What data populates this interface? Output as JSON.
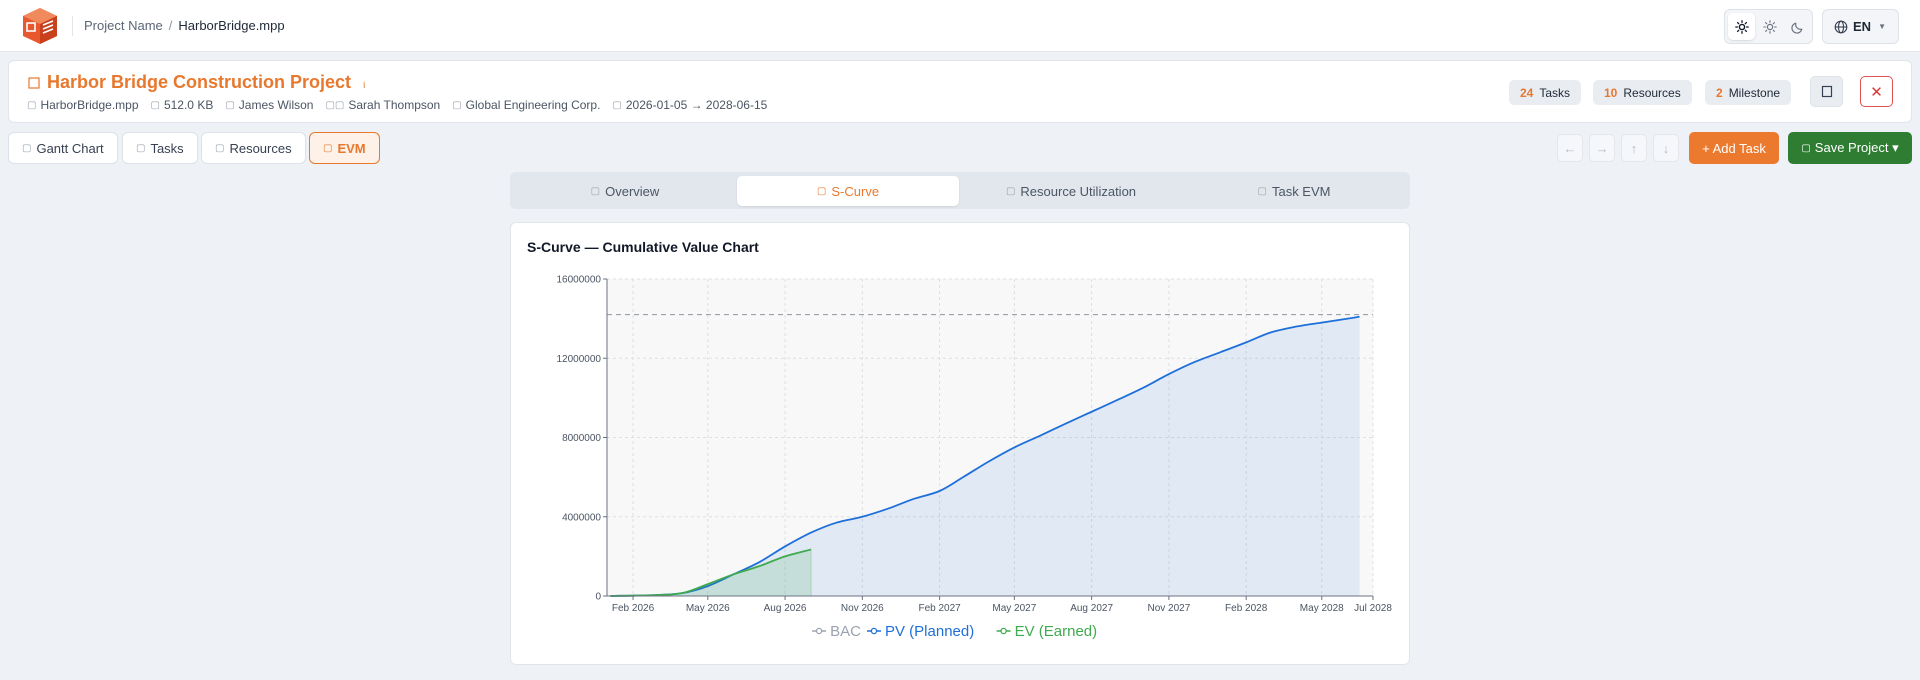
{
  "topbar": {
    "breadcrumb_project": "Project Name",
    "breadcrumb_sep": "/",
    "breadcrumb_file": "HarborBridge.mpp",
    "theme_icons": [
      "sun-auto-icon",
      "sun-icon",
      "moon-icon"
    ],
    "language": "EN"
  },
  "project": {
    "title": "Harbor Bridge Construction Project",
    "title_icon": "folder-icon",
    "info_marker": "i",
    "meta": {
      "file": "HarborBridge.mpp",
      "size": "512.0 KB",
      "manager": "James Wilson",
      "owner": "Sarah Thompson",
      "company": "Global Engineering Corp.",
      "dates": "2026-01-05 → 2028-06-15"
    },
    "stats": {
      "tasks_count": "24",
      "tasks_label": "Tasks",
      "resources_count": "10",
      "resources_label": "Resources",
      "milestone_count": "2",
      "milestone_label": "Milestone"
    },
    "close_glyph": "✕"
  },
  "tabs": {
    "gantt": "Gantt Chart",
    "tasks": "Tasks",
    "resources": "Resources",
    "evm": "EVM"
  },
  "actions": {
    "arrows": [
      "←",
      "→",
      "↑",
      "↓"
    ],
    "add_task": "+ Add Task",
    "save_project": "Save Project ▾"
  },
  "evm_tabs": {
    "overview": "Overview",
    "scurve": "S-Curve",
    "resource_util": "Resource Utilization",
    "task_evm": "Task EVM"
  },
  "colors": {
    "accent": "#e8782e",
    "pv": "#1e6fd9",
    "ev": "#3faa4e",
    "bac": "#9ca3af",
    "save": "#2e7d32",
    "danger": "#d93a3a"
  },
  "chart_data": {
    "type": "area",
    "title": "S-Curve — Cumulative Value Chart",
    "x_start": "2026-01-01",
    "x_end": "2028-07-01",
    "xticks": [
      {
        "date": "2026-02-01",
        "label": "Feb 2026"
      },
      {
        "date": "2026-05-01",
        "label": "May 2026"
      },
      {
        "date": "2026-08-01",
        "label": "Aug 2026"
      },
      {
        "date": "2026-11-01",
        "label": "Nov 2026"
      },
      {
        "date": "2027-02-01",
        "label": "Feb 2027"
      },
      {
        "date": "2027-05-01",
        "label": "May 2027"
      },
      {
        "date": "2027-08-01",
        "label": "Aug 2027"
      },
      {
        "date": "2027-11-01",
        "label": "Nov 2027"
      },
      {
        "date": "2028-02-01",
        "label": "Feb 2028"
      },
      {
        "date": "2028-05-01",
        "label": "May 2028"
      },
      {
        "date": "2028-07-01",
        "label": "Jul 2028"
      }
    ],
    "ylim": [
      0,
      16000000
    ],
    "yticks": [
      0,
      4000000,
      8000000,
      12000000,
      16000000
    ],
    "ytick_labels": [
      "0",
      "4000000",
      "8000000",
      "12000000",
      "16000000"
    ],
    "grid": true,
    "legend_position": "bottom",
    "bac": {
      "name": "BAC",
      "value": 14200000
    },
    "data_date": "2026-09-01",
    "series": [
      {
        "name": "PV (Planned)",
        "x": [
          "2026-01-05",
          "2026-03-01",
          "2026-04-01",
          "2026-05-01",
          "2026-06-01",
          "2026-07-01",
          "2026-08-01",
          "2026-09-01",
          "2026-10-01",
          "2026-11-01",
          "2026-12-01",
          "2027-01-01",
          "2027-02-01",
          "2027-03-01",
          "2027-04-01",
          "2027-05-01",
          "2027-06-01",
          "2027-07-01",
          "2027-08-01",
          "2027-09-01",
          "2027-10-01",
          "2027-11-01",
          "2027-12-01",
          "2028-01-01",
          "2028-02-01",
          "2028-03-01",
          "2028-04-01",
          "2028-05-01",
          "2028-06-01",
          "2028-06-15"
        ],
        "y": [
          0,
          50000,
          150000,
          500000,
          1100000,
          1700000,
          2500000,
          3200000,
          3700000,
          4000000,
          4400000,
          4900000,
          5300000,
          6000000,
          6800000,
          7500000,
          8100000,
          8700000,
          9300000,
          9900000,
          10500000,
          11200000,
          11800000,
          12300000,
          12800000,
          13300000,
          13600000,
          13800000,
          14000000,
          14100000
        ]
      },
      {
        "name": "EV (Earned)",
        "x": [
          "2026-01-05",
          "2026-03-01",
          "2026-04-01",
          "2026-05-01",
          "2026-06-01",
          "2026-07-01",
          "2026-08-01",
          "2026-09-01"
        ],
        "y": [
          0,
          50000,
          150000,
          600000,
          1100000,
          1500000,
          2000000,
          2350000
        ]
      }
    ]
  }
}
